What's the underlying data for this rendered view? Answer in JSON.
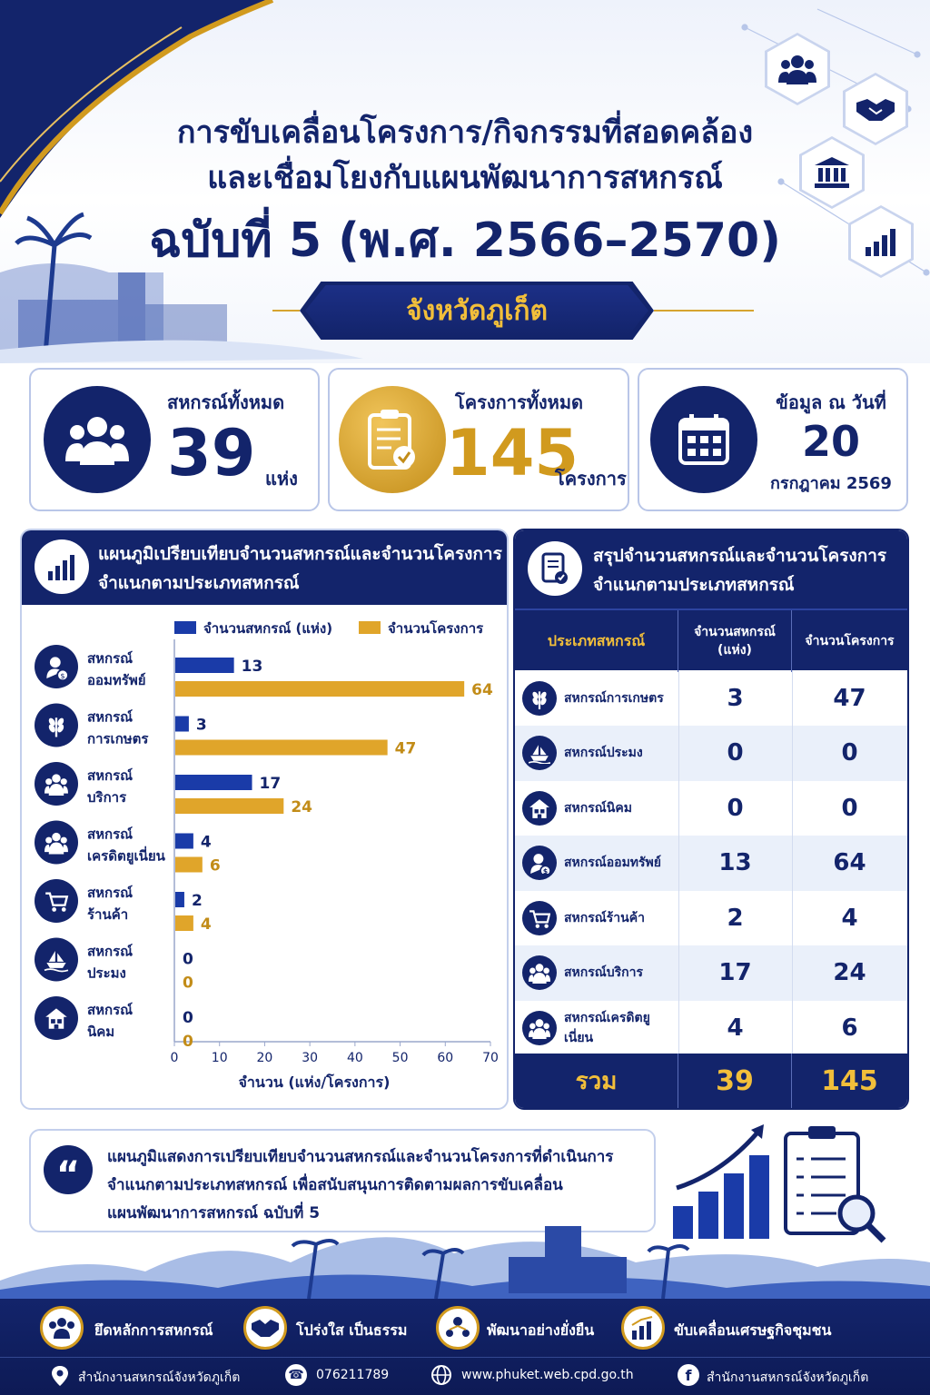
{
  "header": {
    "title_line1": "การขับเคลื่อนโครงการ/กิจกรรมที่สอดคล้อง",
    "title_line2": "และเชื่อมโยงกับแผนพัฒนาการสหกรณ์",
    "title_line3": "ฉบับที่ 5 (พ.ศ. 2566–2570)",
    "province": "จังหวัดภูเก็ต"
  },
  "stats": {
    "coops_label": "สหกรณ์ทั้งหมด",
    "coops_value": "39",
    "coops_unit": "แห่ง",
    "projects_label": "โครงการทั้งหมด",
    "projects_value": "145",
    "projects_unit": "โครงการ",
    "date_label": "ข้อมูล ณ วันที่",
    "date_day": "20",
    "date_month_year": "กรกฎาคม 2569"
  },
  "chart_panel": {
    "title_line1": "แผนภูมิเปรียบเทียบจำนวนสหกรณ์และจำนวนโครงการ",
    "title_line2": "จำแนกตามประเภทสหกรณ์"
  },
  "chart_data": {
    "type": "bar",
    "orientation": "horizontal",
    "categories": [
      [
        "สหกรณ์",
        "ออมทรัพย์"
      ],
      [
        "สหกรณ์",
        "การเกษตร"
      ],
      [
        "สหกรณ์",
        "บริการ"
      ],
      [
        "สหกรณ์",
        "เครดิตยูเนี่ยน"
      ],
      [
        "สหกรณ์",
        "ร้านค้า"
      ],
      [
        "สหกรณ์",
        "ประมง"
      ],
      [
        "สหกรณ์",
        "นิคม"
      ]
    ],
    "series": [
      {
        "name": "จำนวนสหกรณ์ (แห่ง)",
        "color": "#1a3ba8",
        "values": [
          13,
          3,
          17,
          4,
          2,
          0,
          0
        ]
      },
      {
        "name": "จำนวนโครงการ",
        "color": "#e0a52a",
        "values": [
          64,
          47,
          24,
          6,
          4,
          0,
          0
        ]
      }
    ],
    "xlim": [
      0,
      70
    ],
    "xticks": [
      "0",
      "10",
      "20",
      "30",
      "40",
      "50",
      "60",
      "70"
    ],
    "xlabel": "จำนวน (แห่ง/โครงการ)",
    "legend": "top-right",
    "grid": false
  },
  "table_panel": {
    "title_line1": "สรุปจำนวนสหกรณ์และจำนวนโครงการ",
    "title_line2": "จำแนกตามประเภทสหกรณ์",
    "col_type": "ประเภทสหกรณ์",
    "col_coops_line1": "จำนวนสหกรณ์",
    "col_coops_line2": "(แห่ง)",
    "col_projects": "จำนวนโครงการ",
    "rows": [
      {
        "name": "สหกรณ์การเกษตร",
        "coops": "3",
        "projects": "47",
        "icon": "wheat-icon"
      },
      {
        "name": "สหกรณ์ประมง",
        "coops": "0",
        "projects": "0",
        "icon": "boat-icon"
      },
      {
        "name": "สหกรณ์นิคม",
        "coops": "0",
        "projects": "0",
        "icon": "house-icon"
      },
      {
        "name": "สหกรณ์ออมทรัพย์",
        "coops": "13",
        "projects": "64",
        "icon": "saving-icon"
      },
      {
        "name": "สหกรณ์ร้านค้า",
        "coops": "2",
        "projects": "4",
        "icon": "cart-icon"
      },
      {
        "name": "สหกรณ์บริการ",
        "coops": "17",
        "projects": "24",
        "icon": "people-icon"
      },
      {
        "name": "สหกรณ์เครดิตยูเนี่ยน",
        "coops": "4",
        "projects": "6",
        "icon": "people-icon"
      }
    ],
    "total_label": "รวม",
    "total_coops": "39",
    "total_projects": "145"
  },
  "quote": {
    "line1": "แผนภูมิแสดงการเปรียบเทียบจำนวนสหกรณ์และจำนวนโครงการที่ดำเนินการ",
    "line2": "จำแนกตามประเภทสหกรณ์ เพื่อสนับสนุนการติดตามผลการขับเคลื่อน",
    "line3": "แผนพัฒนาการสหกรณ์ ฉบับที่ 5"
  },
  "footer": {
    "values": [
      {
        "label": "ยึดหลักการสหกรณ์",
        "icon": "people-icon"
      },
      {
        "label": "โปร่งใส เป็นธรรม",
        "icon": "handshake-icon"
      },
      {
        "label": "พัฒนาอย่างยั่งยืน",
        "icon": "growth-icon"
      },
      {
        "label": "ขับเคลื่อนเศรษฐกิจชุมชน",
        "icon": "chart-up-icon"
      }
    ],
    "office": "สำนักงานสหกรณ์จังหวัดภูเก็ต",
    "phone": "076211789",
    "website": "www.phuket.web.cpd.go.th",
    "facebook": "สำนักงานสหกรณ์จังหวัดภูเก็ต"
  },
  "colors": {
    "navy": "#13246b",
    "gold": "#d19a1e",
    "blue_bar": "#1a3ba8",
    "gold_bar": "#e0a52a"
  }
}
